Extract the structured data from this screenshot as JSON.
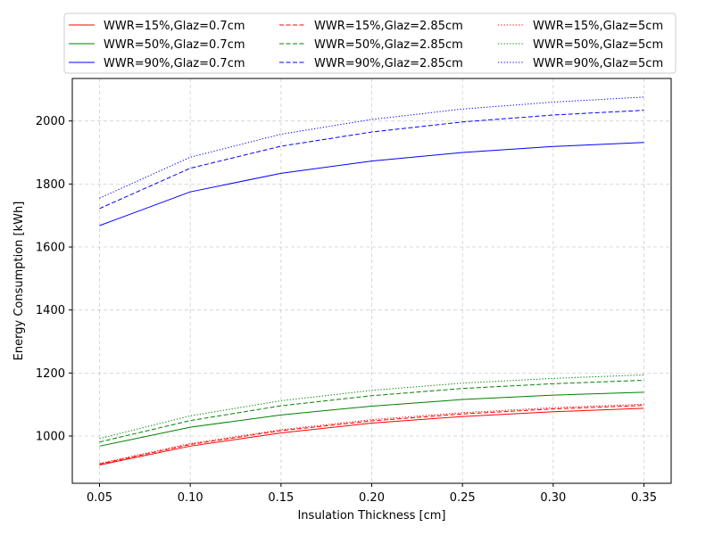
{
  "chart_data": {
    "type": "line",
    "title": "",
    "xlabel": "Insulation Thickness [cm]",
    "ylabel": "Energy Consumption [kWh]",
    "x": [
      0.05,
      0.1,
      0.15,
      0.2,
      0.25,
      0.3,
      0.35
    ],
    "x_tick_labels": [
      "0.05",
      "0.10",
      "0.15",
      "0.20",
      "0.25",
      "0.30",
      "0.35"
    ],
    "y_ticks": [
      1000,
      1200,
      1400,
      1600,
      1800,
      2000
    ],
    "xlim": [
      0.035,
      0.365
    ],
    "ylim": [
      850,
      2135
    ],
    "grid": true,
    "legend_position": "top, above plot, 3 columns",
    "colors": {
      "wwr15": "#ff0000",
      "wwr50": "#008000",
      "wwr90": "#0000ff"
    },
    "series": [
      {
        "name": "WWR=15%,Glaz=0.7cm",
        "color": "#ff0000",
        "style": "solid",
        "values": [
          908,
          968,
          1010,
          1041,
          1062,
          1077,
          1088
        ]
      },
      {
        "name": "WWR=50%,Glaz=0.7cm",
        "color": "#008000",
        "style": "solid",
        "values": [
          968,
          1028,
          1067,
          1095,
          1116,
          1130,
          1139
        ]
      },
      {
        "name": "WWR=90%,Glaz=0.7cm",
        "color": "#0000ff",
        "style": "solid",
        "values": [
          1668,
          1775,
          1834,
          1873,
          1900,
          1919,
          1932
        ]
      },
      {
        "name": "WWR=15%,Glaz=2.85cm",
        "color": "#ff0000",
        "style": "dashed",
        "values": [
          911,
          973,
          1017,
          1048,
          1070,
          1086,
          1097
        ]
      },
      {
        "name": "WWR=50%,Glaz=2.85cm",
        "color": "#008000",
        "style": "dashed",
        "values": [
          981,
          1049,
          1096,
          1128,
          1151,
          1166,
          1177
        ]
      },
      {
        "name": "WWR=90%,Glaz=2.85cm",
        "color": "#0000ff",
        "style": "dashed",
        "values": [
          1722,
          1850,
          1920,
          1965,
          1997,
          2019,
          2034
        ]
      },
      {
        "name": "WWR=15%,Glaz=5cm",
        "color": "#ff0000",
        "style": "dotted",
        "values": [
          913,
          976,
          1020,
          1052,
          1074,
          1090,
          1101
        ]
      },
      {
        "name": "WWR=50%,Glaz=5cm",
        "color": "#008000",
        "style": "dotted",
        "values": [
          992,
          1064,
          1112,
          1145,
          1168,
          1183,
          1194
        ]
      },
      {
        "name": "WWR=90%,Glaz=5cm",
        "color": "#0000ff",
        "style": "dotted",
        "values": [
          1755,
          1885,
          1958,
          2005,
          2038,
          2060,
          2076
        ]
      }
    ]
  }
}
